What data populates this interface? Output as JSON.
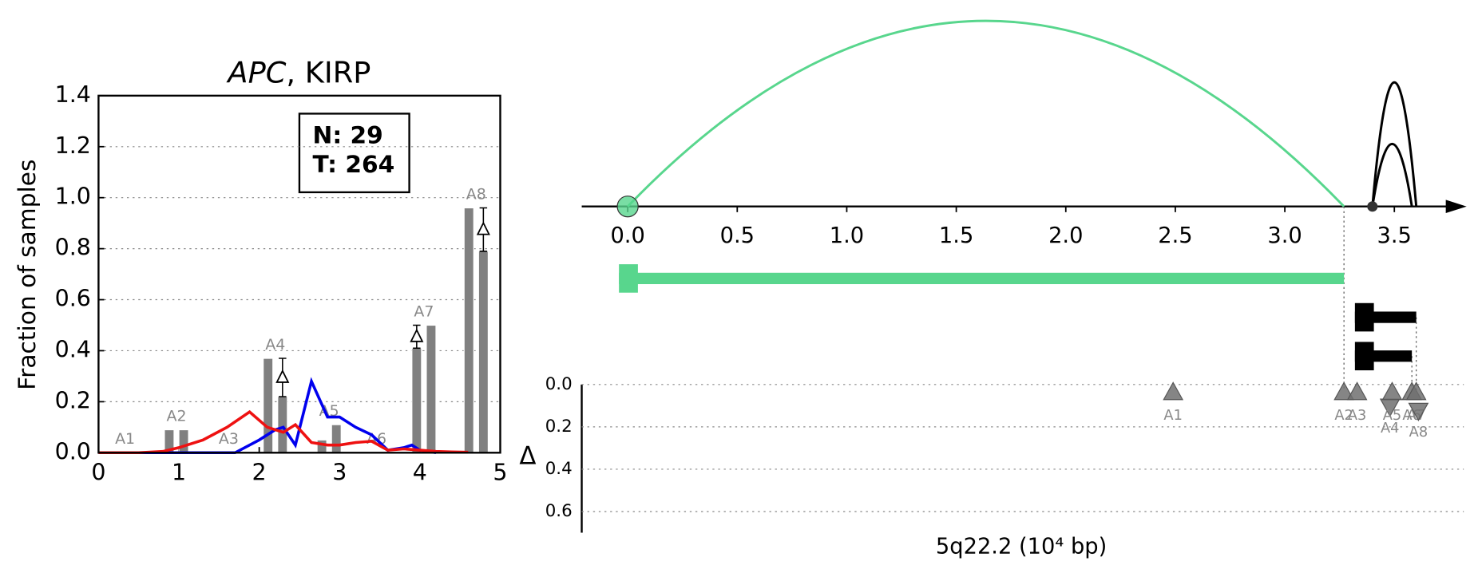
{
  "chart_data": [
    {
      "type": "bar",
      "title_gene": "APC",
      "title_cohort": ", KIRP",
      "ylabel": "Fraction of samples",
      "annotation": [
        "N: 29",
        "T: 264"
      ],
      "xlim": [
        0,
        5
      ],
      "xticks": [
        0,
        1,
        2,
        3,
        4,
        5
      ],
      "ylim": [
        0,
        1.4
      ],
      "yticks": [
        {
          "value": 0,
          "label": "0.0"
        },
        0.2,
        0.4,
        0.6,
        0.8,
        {
          "value": 1,
          "label": "1.0"
        },
        1.2,
        1.4
      ],
      "grid": "y",
      "categories": [
        "A1",
        "A2",
        "A3",
        "A4",
        "A5",
        "A6",
        "A7",
        "A8"
      ],
      "x": [
        0.33,
        0.97,
        1.62,
        2.2,
        2.87,
        3.46,
        4.05,
        4.7
      ],
      "series": [
        {
          "color": "#808080",
          "values": [
            0,
            0.09,
            0,
            0.37,
            0.05,
            0,
            0.41,
            0.96
          ]
        },
        {
          "color": "#808080",
          "values": [
            0,
            0.09,
            0,
            0.22,
            0.11,
            0,
            0.5,
            0.79
          ]
        }
      ],
      "delta": [
        null,
        null,
        null,
        0.15,
        null,
        null,
        0.09,
        0.17
      ],
      "lines": [
        {
          "color": "#0000ee",
          "x": [
            0,
            1.7,
            2.0,
            2.2,
            2.3,
            2.45,
            2.65,
            2.85,
            3.0,
            3.2,
            3.4,
            3.6,
            3.8,
            3.9,
            4.0,
            4.2
          ],
          "values": [
            0,
            0,
            0.05,
            0.09,
            0.1,
            0.03,
            0.28,
            0.14,
            0.14,
            0.1,
            0.07,
            0.01,
            0.02,
            0.03,
            0.01,
            0
          ]
        },
        {
          "color": "#ee1111",
          "x": [
            0,
            0.5,
            0.8,
            1.0,
            1.3,
            1.6,
            1.88,
            2.1,
            2.3,
            2.45,
            2.65,
            2.85,
            3.0,
            3.2,
            3.4,
            3.6,
            3.8,
            4.0,
            4.2,
            4.4,
            4.6
          ],
          "values": [
            0,
            0,
            0.005,
            0.02,
            0.05,
            0.1,
            0.16,
            0.1,
            0.08,
            0.11,
            0.04,
            0.03,
            0.03,
            0.04,
            0.045,
            0.01,
            0.015,
            0.01,
            0.005,
            0.003,
            0.002
          ]
        }
      ]
    },
    {
      "type": "arcs",
      "xlim": [
        -0.21,
        3.83
      ],
      "xticks": [
        {
          "value": 0,
          "label": "0.0"
        },
        0.5,
        {
          "value": 1,
          "label": "1.0"
        },
        1.5,
        {
          "value": 2,
          "label": "2.0"
        },
        2.5,
        {
          "value": 3,
          "label": "3.0"
        },
        3.5
      ],
      "xlabel": "5q22.2 (10⁴ bp)",
      "arcs": [
        {
          "start": 0,
          "end": 3.27,
          "color": "#58d68d"
        },
        {
          "start": 3.4,
          "end": 3.6,
          "color": "#000000"
        },
        {
          "start": 3.4,
          "end": 3.58,
          "color": "#000000"
        }
      ],
      "points": [
        {
          "x": 0,
          "color": "#58d68d"
        },
        {
          "x": 3.4,
          "color": "#333333"
        }
      ],
      "segments": [
        {
          "start": -0.04,
          "end": 3.27,
          "color": "#58d68d"
        },
        {
          "start": 3.32,
          "end": 3.6,
          "color": "#000000"
        },
        {
          "start": 3.32,
          "end": 3.58,
          "color": "#000000"
        }
      ],
      "ylabel": "Δ",
      "ylim": [
        0,
        0.7
      ],
      "yticks": [
        {
          "value": 0,
          "label": "0.0"
        },
        0.2,
        0.4,
        0.6
      ],
      "grid": "y",
      "marker_color": "#707070",
      "categories": [
        "A1",
        "A2",
        "A3",
        "A4",
        "A5",
        "A6",
        "A7",
        "A8"
      ],
      "x": [
        2.49,
        3.27,
        3.33,
        3.48,
        3.49,
        3.58,
        3.6,
        3.61
      ],
      "values": [
        0.04,
        0.04,
        0.04,
        0.1,
        0.04,
        0.04,
        0.04,
        0.12
      ],
      "direction": [
        "up",
        "up",
        "up",
        "down",
        "up",
        "up",
        "up",
        "down"
      ]
    }
  ]
}
